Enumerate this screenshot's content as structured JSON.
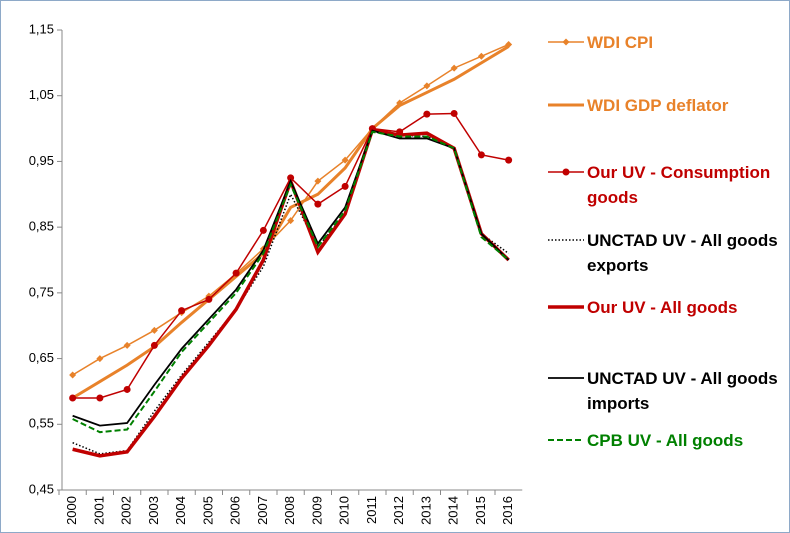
{
  "chart_data": {
    "type": "line",
    "categories": [
      "2000",
      "2001",
      "2002",
      "2003",
      "2004",
      "2005",
      "2006",
      "2007",
      "2008",
      "2009",
      "2010",
      "2011",
      "2012",
      "2013",
      "2014",
      "2015",
      "2016"
    ],
    "series": [
      {
        "name": "WDI CPI",
        "color": "#e8822a",
        "line_width": 1.5,
        "line_style": "solid",
        "marker": "diamond",
        "values": [
          0.625,
          0.65,
          0.67,
          0.693,
          0.72,
          0.745,
          0.779,
          0.817,
          0.86,
          0.92,
          0.952,
          1.0,
          1.039,
          1.065,
          1.092,
          1.11,
          1.128
        ]
      },
      {
        "name": "WDI GDP deflator",
        "color": "#e8822a",
        "line_width": 3,
        "line_style": "solid",
        "values": [
          0.59,
          0.615,
          0.64,
          0.668,
          0.705,
          0.74,
          0.775,
          0.81,
          0.88,
          0.9,
          0.94,
          1.0,
          1.035,
          1.055,
          1.075,
          1.1,
          1.125
        ]
      },
      {
        "name": "Our UV - Consumption goods",
        "color": "#c00000",
        "line_width": 1.5,
        "line_style": "solid",
        "marker": "circle",
        "values": [
          0.59,
          0.59,
          0.603,
          0.67,
          0.723,
          0.74,
          0.78,
          0.845,
          0.925,
          0.885,
          0.912,
          1.0,
          0.995,
          1.022,
          1.023,
          0.96,
          0.952
        ]
      },
      {
        "name": "UNCTAD UV - All goods exports",
        "color": "#000000",
        "line_width": 1.5,
        "line_style": "dotted",
        "values": [
          0.522,
          0.505,
          0.51,
          0.57,
          0.625,
          0.675,
          0.725,
          0.79,
          0.9,
          0.82,
          0.87,
          0.995,
          0.99,
          0.988,
          0.97,
          0.84,
          0.81
        ]
      },
      {
        "name": "Our UV - All goods",
        "color": "#c00000",
        "line_width": 3.5,
        "line_style": "solid",
        "values": [
          0.512,
          0.502,
          0.508,
          0.562,
          0.62,
          0.67,
          0.725,
          0.8,
          0.92,
          0.812,
          0.87,
          0.998,
          0.99,
          0.993,
          0.97,
          0.84,
          0.8
        ]
      },
      {
        "name": "UNCTAD UV - All goods imports",
        "color": "#000000",
        "line_width": 1.8,
        "line_style": "solid",
        "values": [
          0.563,
          0.548,
          0.552,
          0.61,
          0.665,
          0.71,
          0.755,
          0.815,
          0.92,
          0.825,
          0.88,
          0.997,
          0.985,
          0.985,
          0.97,
          0.84,
          0.8
        ]
      },
      {
        "name": "CPB UV - All goods",
        "color": "#008000",
        "line_width": 2,
        "line_style": "dashed",
        "values": [
          0.558,
          0.538,
          0.542,
          0.6,
          0.66,
          0.705,
          0.75,
          0.81,
          0.915,
          0.82,
          0.875,
          0.995,
          0.988,
          0.988,
          0.97,
          0.835,
          0.8
        ]
      }
    ],
    "ylim": [
      0.45,
      1.15
    ],
    "yticks": [
      {
        "value": 0.45,
        "label": "0,45"
      },
      {
        "value": 0.55,
        "label": "0,55"
      },
      {
        "value": 0.65,
        "label": "0,65"
      },
      {
        "value": 0.75,
        "label": "0,75"
      },
      {
        "value": 0.85,
        "label": "0,85"
      },
      {
        "value": 0.95,
        "label": "0,95"
      },
      {
        "value": 1.05,
        "label": "1,05"
      },
      {
        "value": 1.15,
        "label": "1,15"
      }
    ],
    "grid": false
  }
}
